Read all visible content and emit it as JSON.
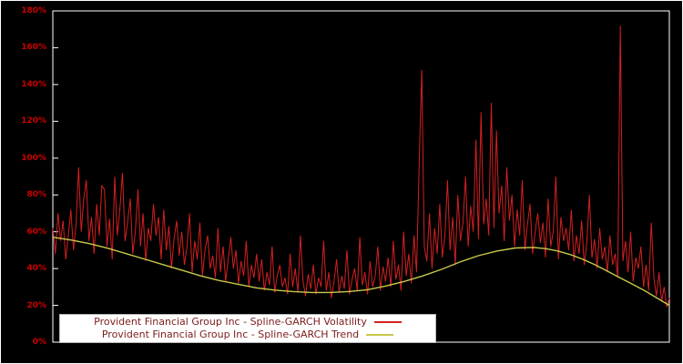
{
  "colors": {
    "background": "#000000",
    "plot_border": "#ffffff",
    "volatility_line": "#d42020",
    "trend_line": "#c8c84a",
    "axis_tick_label": "#cc0000",
    "legend_background": "#ffffff",
    "legend_text": "#7d1c1c"
  },
  "y_axis": {
    "tick_labels": [
      "0%",
      "20%",
      "40%",
      "60%",
      "80%",
      "100%",
      "120%",
      "140%",
      "160%",
      "180%"
    ],
    "min": 0,
    "max": 180
  },
  "legend": {
    "items": [
      {
        "label": "Provident Financial Group Inc - Spline-GARCH Volatility",
        "color": "#d42020"
      },
      {
        "label": "Provident Financial Group Inc - Spline-GARCH Trend",
        "color": "#c8c84a"
      }
    ]
  },
  "chart_data": {
    "type": "line",
    "title": "",
    "xlabel": "",
    "ylabel": "",
    "ylim": [
      0,
      180
    ],
    "grid": false,
    "legend_position": "bottom-left",
    "series": [
      {
        "name": "Provident Financial Group Inc - Spline-GARCH Volatility",
        "color": "#d42020",
        "unit": "%",
        "values": [
          62,
          48,
          70,
          55,
          66,
          45,
          58,
          72,
          50,
          64,
          95,
          60,
          78,
          88,
          55,
          68,
          48,
          75,
          58,
          85,
          83,
          52,
          67,
          45,
          90,
          58,
          72,
          92,
          55,
          65,
          78,
          48,
          60,
          83,
          52,
          70,
          44,
          62,
          55,
          75,
          58,
          68,
          45,
          72,
          50,
          63,
          40,
          56,
          66,
          47,
          60,
          42,
          52,
          70,
          38,
          55,
          45,
          65,
          36,
          50,
          58,
          40,
          47,
          35,
          62,
          38,
          52,
          33,
          45,
          57,
          40,
          50,
          32,
          44,
          36,
          55,
          30,
          42,
          35,
          48,
          33,
          45,
          28,
          38,
          31,
          52,
          27,
          36,
          42,
          30,
          35,
          26,
          48,
          30,
          40,
          27,
          58,
          33,
          25,
          37,
          29,
          42,
          26,
          35,
          30,
          55,
          28,
          38,
          24,
          33,
          45,
          27,
          36,
          29,
          50,
          26,
          34,
          40,
          28,
          57,
          31,
          38,
          26,
          44,
          30,
          36,
          52,
          28,
          41,
          33,
          46,
          30,
          55,
          34,
          42,
          28,
          60,
          36,
          48,
          32,
          58,
          38,
          95,
          148,
          52,
          44,
          70,
          40,
          62,
          48,
          75,
          46,
          58,
          88,
          50,
          68,
          42,
          80,
          55,
          65,
          90,
          52,
          74,
          60,
          110,
          56,
          125,
          64,
          78,
          58,
          130,
          62,
          115,
          70,
          85,
          55,
          95,
          66,
          80,
          52,
          72,
          58,
          88,
          50,
          64,
          75,
          48,
          60,
          70,
          54,
          65,
          46,
          78,
          52,
          60,
          90,
          45,
          68,
          55,
          62,
          50,
          72,
          44,
          58,
          48,
          66,
          42,
          54,
          80,
          46,
          56,
          40,
          62,
          45,
          52,
          38,
          58,
          42,
          48,
          35,
          172,
          44,
          55,
          38,
          60,
          33,
          46,
          40,
          52,
          30,
          42,
          28,
          65,
          35,
          25,
          38,
          22,
          30,
          19,
          24
        ]
      },
      {
        "name": "Provident Financial Group Inc - Spline-GARCH Trend",
        "color": "#c8c84a",
        "unit": "%",
        "points": [
          [
            0,
            57
          ],
          [
            0.03,
            55.5
          ],
          [
            0.06,
            53.5
          ],
          [
            0.09,
            51
          ],
          [
            0.12,
            48
          ],
          [
            0.15,
            45
          ],
          [
            0.18,
            42
          ],
          [
            0.21,
            39
          ],
          [
            0.24,
            36
          ],
          [
            0.27,
            33.5
          ],
          [
            0.3,
            31.5
          ],
          [
            0.33,
            29.5
          ],
          [
            0.36,
            28.3
          ],
          [
            0.39,
            27.5
          ],
          [
            0.42,
            27
          ],
          [
            0.45,
            27
          ],
          [
            0.48,
            27.5
          ],
          [
            0.51,
            28.5
          ],
          [
            0.54,
            30.5
          ],
          [
            0.57,
            33
          ],
          [
            0.6,
            36
          ],
          [
            0.63,
            39.5
          ],
          [
            0.66,
            43.5
          ],
          [
            0.69,
            47
          ],
          [
            0.72,
            49.5
          ],
          [
            0.75,
            51.2
          ],
          [
            0.78,
            51.5
          ],
          [
            0.8,
            50.8
          ],
          [
            0.82,
            49.5
          ],
          [
            0.84,
            47.5
          ],
          [
            0.86,
            45
          ],
          [
            0.88,
            42
          ],
          [
            0.9,
            38.5
          ],
          [
            0.92,
            35
          ],
          [
            0.94,
            31.5
          ],
          [
            0.96,
            28
          ],
          [
            0.98,
            24
          ],
          [
            1.0,
            20
          ]
        ]
      }
    ]
  }
}
